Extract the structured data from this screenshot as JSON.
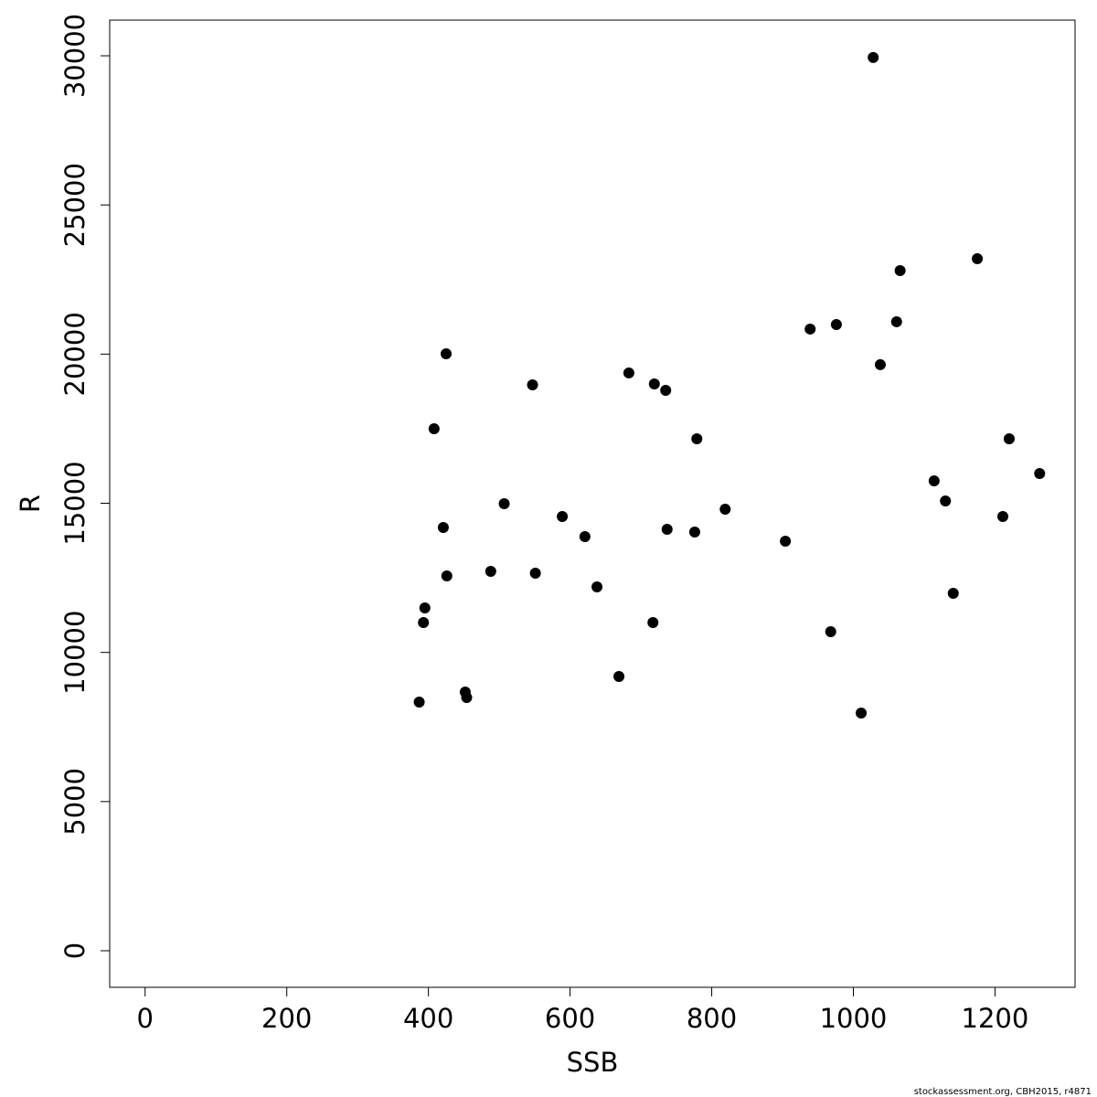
{
  "chart_data": {
    "type": "scatter",
    "x_label": "SSB",
    "y_label": "R",
    "footer": "stockassessment.org, CBH2015, r4871",
    "color": "#000000",
    "xlim": [
      -50,
      1313
    ],
    "ylim": [
      -1226,
      31196
    ],
    "xticks": [
      0,
      200,
      400,
      600,
      800,
      1000,
      1200
    ],
    "yticks": [
      0,
      5000,
      10000,
      15000,
      20000,
      25000,
      30000
    ],
    "x": [
      387,
      393,
      395,
      408,
      421,
      425,
      426,
      452,
      454,
      488,
      507,
      547,
      551,
      589,
      621,
      638,
      669,
      683,
      717,
      719,
      735,
      737,
      776,
      779,
      819,
      904,
      939,
      968,
      976,
      1011,
      1028,
      1038,
      1061,
      1066,
      1114,
      1130,
      1141,
      1175,
      1211,
      1220,
      1263
    ],
    "values": [
      8336,
      11002,
      11492,
      17499,
      14189,
      20012,
      12565,
      8673,
      8489,
      12718,
      14986,
      18970,
      12657,
      14557,
      13883,
      12197,
      9194,
      19369,
      11002,
      19001,
      18786,
      14128,
      14036,
      17162,
      14802,
      13730,
      20840,
      10696,
      20993,
      7968,
      29942,
      19645,
      21085,
      22801,
      15752,
      15078,
      11983,
      23199,
      14557,
      17162,
      15997
    ]
  }
}
